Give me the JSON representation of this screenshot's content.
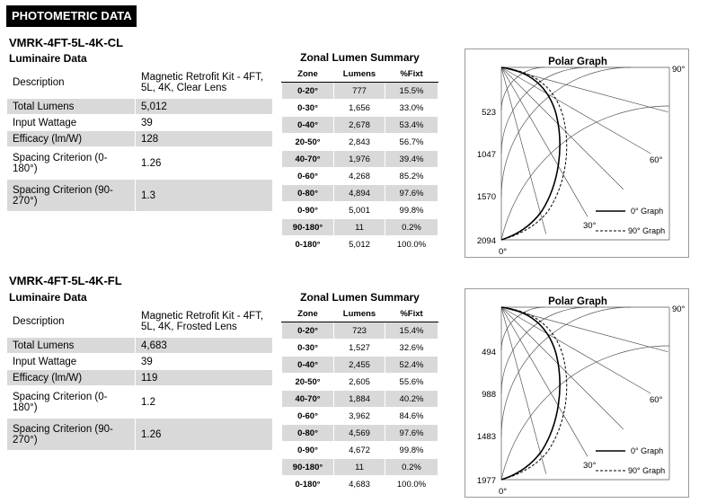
{
  "header": "PHOTOMETRIC DATA",
  "products": [
    {
      "model": "VMRK-4FT-5L-4K-CL",
      "luminaire_title": "Luminaire Data",
      "rows": [
        {
          "label": "Description",
          "value": "Magnetic Retrofit Kit - 4FT, 5L, 4K, Clear Lens"
        },
        {
          "label": "Total Lumens",
          "value": "5,012"
        },
        {
          "label": "Input Wattage",
          "value": "39"
        },
        {
          "label": "Efficacy (lm/W)",
          "value": "128"
        },
        {
          "label": "Spacing Criterion (0-180°)",
          "value": "1.26"
        },
        {
          "label": "Spacing Criterion (90-270°)",
          "value": "1.3"
        }
      ],
      "zonal": {
        "title": "Zonal Lumen Summary",
        "headers": [
          "Zone",
          "Lumens",
          "%Fixt"
        ],
        "rows": [
          [
            "0-20°",
            "777",
            "15.5%"
          ],
          [
            "0-30°",
            "1,656",
            "33.0%"
          ],
          [
            "0-40°",
            "2,678",
            "53.4%"
          ],
          [
            "20-50°",
            "2,843",
            "56.7%"
          ],
          [
            "40-70°",
            "1,976",
            "39.4%"
          ],
          [
            "0-60°",
            "4,268",
            "85.2%"
          ],
          [
            "0-80°",
            "4,894",
            "97.6%"
          ],
          [
            "0-90°",
            "5,001",
            "99.8%"
          ],
          [
            "90-180°",
            "11",
            "0.2%"
          ],
          [
            "0-180°",
            "5,012",
            "100.0%"
          ]
        ]
      },
      "polar": {
        "title": "Polar Graph",
        "scale_labels": [
          "523",
          "1047",
          "1570",
          "2094"
        ],
        "angle_labels": {
          "a0": "0°",
          "a30": "30°",
          "a60": "60°",
          "a90": "90°"
        },
        "legend": [
          "0° Graph",
          "90° Graph"
        ]
      }
    },
    {
      "model": "VMRK-4FT-5L-4K-FL",
      "luminaire_title": "Luminaire Data",
      "rows": [
        {
          "label": "Description",
          "value": "Magnetic Retrofit Kit - 4FT, 5L, 4K, Frosted Lens"
        },
        {
          "label": "Total Lumens",
          "value": "4,683"
        },
        {
          "label": "Input Wattage",
          "value": "39"
        },
        {
          "label": "Efficacy (lm/W)",
          "value": "119"
        },
        {
          "label": "Spacing Criterion (0-180°)",
          "value": "1.2"
        },
        {
          "label": "Spacing Criterion (90-270°)",
          "value": "1.26"
        }
      ],
      "zonal": {
        "title": "Zonal Lumen Summary",
        "headers": [
          "Zone",
          "Lumens",
          "%Fixt"
        ],
        "rows": [
          [
            "0-20°",
            "723",
            "15.4%"
          ],
          [
            "0-30°",
            "1,527",
            "32.6%"
          ],
          [
            "0-40°",
            "2,455",
            "52.4%"
          ],
          [
            "20-50°",
            "2,605",
            "55.6%"
          ],
          [
            "40-70°",
            "1,884",
            "40.2%"
          ],
          [
            "0-60°",
            "3,962",
            "84.6%"
          ],
          [
            "0-80°",
            "4,569",
            "97.6%"
          ],
          [
            "0-90°",
            "4,672",
            "99.8%"
          ],
          [
            "90-180°",
            "11",
            "0.2%"
          ],
          [
            "0-180°",
            "4,683",
            "100.0%"
          ]
        ]
      },
      "polar": {
        "title": "Polar Graph",
        "scale_labels": [
          "494",
          "988",
          "1483",
          "1977"
        ],
        "angle_labels": {
          "a0": "0°",
          "a30": "30°",
          "a60": "60°",
          "a90": "90°"
        },
        "legend": [
          "0° Graph",
          "90° Graph"
        ]
      }
    }
  ]
}
